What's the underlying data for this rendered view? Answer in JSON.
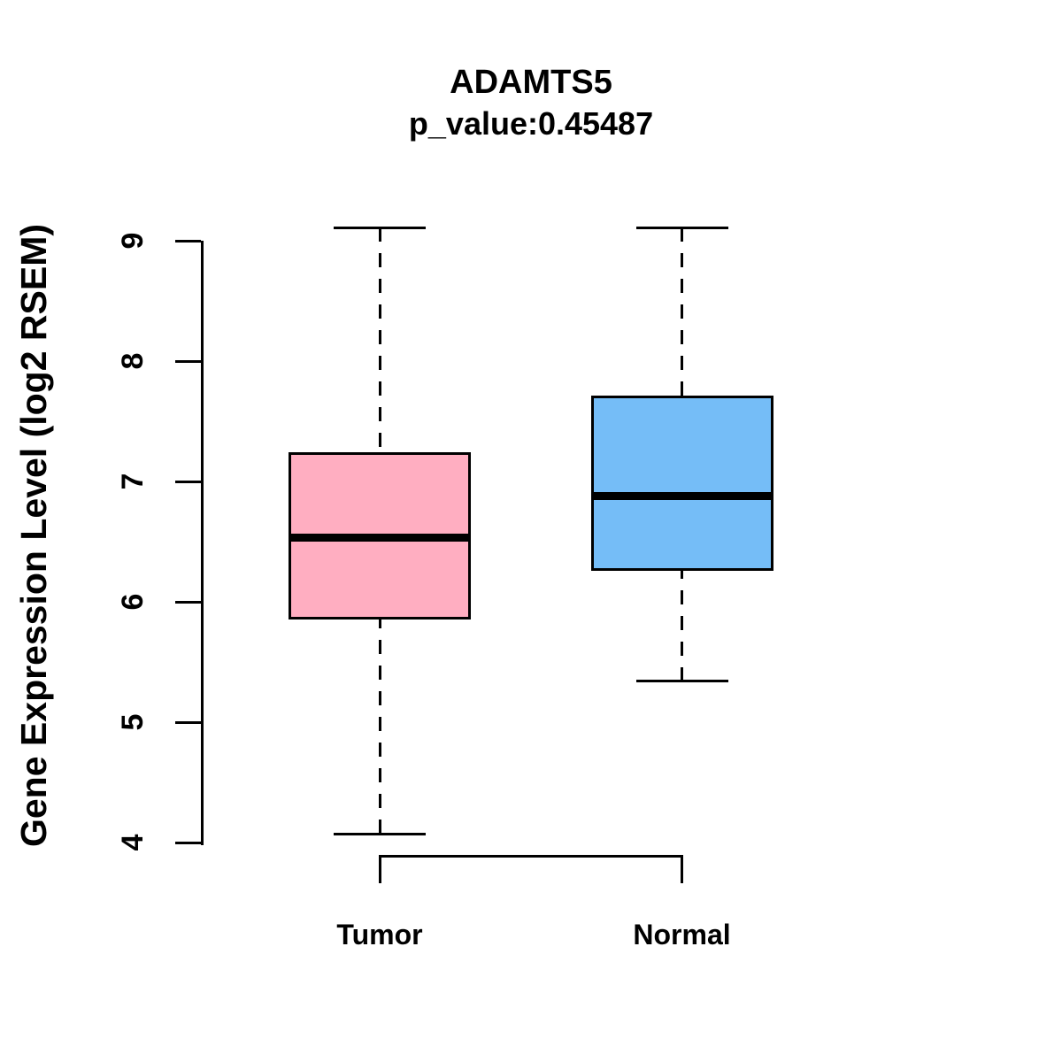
{
  "chart_data": {
    "type": "boxplot",
    "title": "ADAMTS5",
    "subtitle": "p_value:0.45487",
    "ylabel": "Gene Expression Level (log2 RSEM)",
    "xlabel": "",
    "ylim": [
      4,
      9
    ],
    "yticks": [
      4,
      5,
      6,
      7,
      8,
      9
    ],
    "grid": false,
    "legend": "none",
    "groups": [
      {
        "label": "Tumor",
        "color": "#FFAEC1",
        "whisker_low": 4.07,
        "q1": 5.85,
        "median": 6.53,
        "q3": 7.24,
        "whisker_high": 9.11
      },
      {
        "label": "Normal",
        "color": "#75BDF7",
        "whisker_low": 5.34,
        "q1": 6.26,
        "median": 6.88,
        "q3": 7.71,
        "whisker_high": 9.11
      }
    ]
  },
  "colors": {
    "background": "#FFFFFF",
    "stroke": "#000000"
  }
}
